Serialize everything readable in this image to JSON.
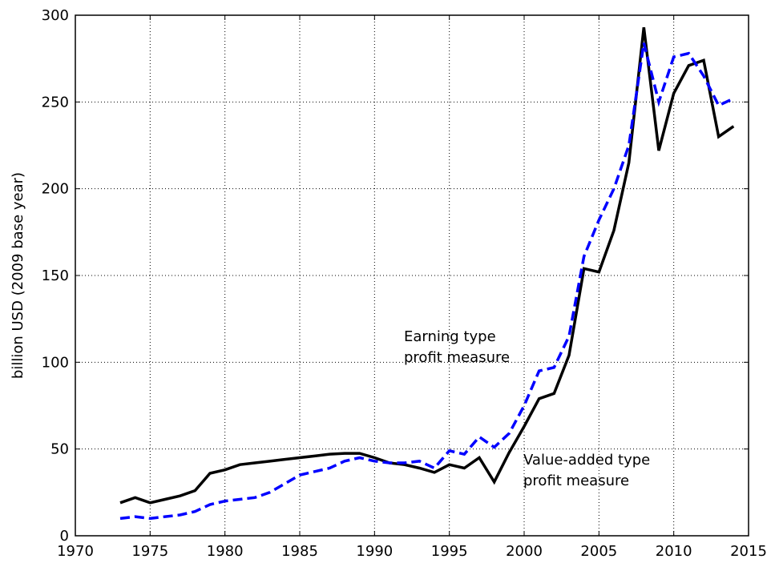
{
  "chart_data": {
    "type": "line",
    "ylabel": "billion USD (2009 base year)",
    "x": [
      1973,
      1974,
      1975,
      1976,
      1977,
      1978,
      1979,
      1980,
      1981,
      1982,
      1983,
      1984,
      1985,
      1986,
      1987,
      1988,
      1989,
      1990,
      1991,
      1992,
      1993,
      1994,
      1995,
      1996,
      1997,
      1998,
      1999,
      2000,
      2001,
      2002,
      2003,
      2004,
      2005,
      2006,
      2007,
      2008,
      2009,
      2010,
      2011,
      2012,
      2013,
      2014
    ],
    "series": [
      {
        "color": "#000000",
        "dashed": false,
        "values": [
          19,
          22,
          19,
          21,
          23,
          26,
          36,
          38,
          41,
          42,
          43,
          44,
          45,
          46,
          47,
          47.5,
          47.5,
          45,
          42,
          41,
          39,
          36.5,
          41,
          39,
          45,
          31,
          48,
          63,
          79,
          82,
          104,
          154,
          152,
          176,
          215,
          293,
          222,
          255,
          271,
          274,
          230,
          236
        ]
      },
      {
        "color": "#0000ff",
        "dashed": true,
        "values": [
          10,
          11,
          10,
          11,
          12,
          14,
          18,
          20,
          21,
          22,
          25,
          30,
          35,
          37,
          39,
          43,
          45,
          43,
          42,
          42,
          43,
          39,
          49,
          47,
          57,
          51,
          59,
          75,
          95,
          97,
          115,
          161,
          182,
          200,
          225,
          284,
          250,
          276,
          278,
          265,
          248,
          252
        ]
      }
    ],
    "annotations": [
      {
        "lines": [
          "Earning type",
          "profit measure"
        ]
      },
      {
        "lines": [
          "Value-added type",
          "profit measure"
        ]
      }
    ],
    "xlim": [
      1970,
      2015
    ],
    "xticks": [
      1970,
      1975,
      1980,
      1985,
      1990,
      1995,
      2000,
      2005,
      2010,
      2015
    ],
    "ylim": [
      0,
      300
    ],
    "yticks": [
      0,
      50,
      100,
      150,
      200,
      250,
      300
    ],
    "grid": true
  }
}
